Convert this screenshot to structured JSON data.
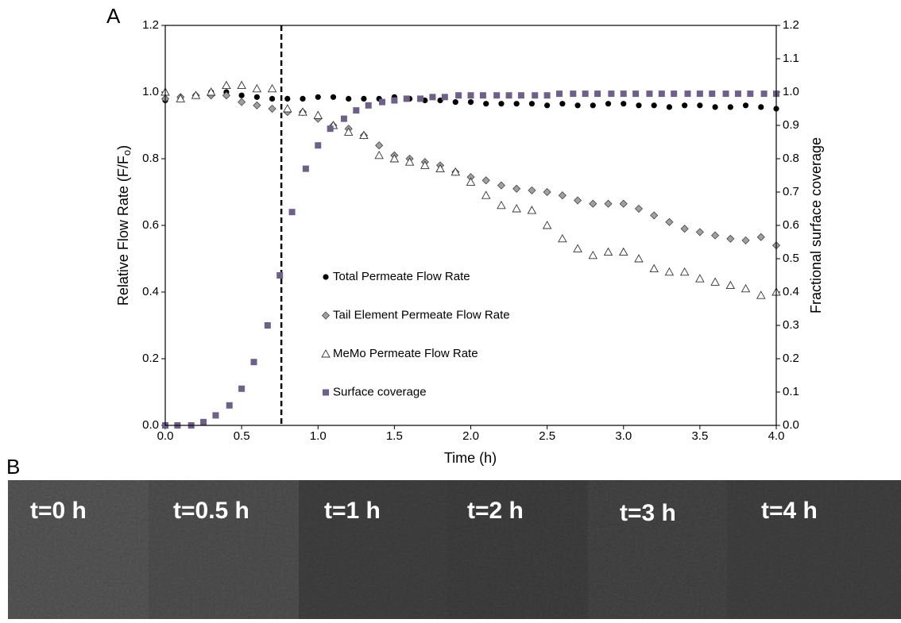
{
  "panel_labels": [
    "A",
    "B"
  ],
  "images": {
    "labels": [
      "t=0 h",
      "t=0.5 h",
      "t=1 h",
      "t=2 h",
      "t=3 h",
      "t=4 h"
    ]
  },
  "chart_data": {
    "type": "scatter",
    "xlabel": "Time (h)",
    "ylabel": "Relative Flow Rate (F/F",
    "ylabel_sub": "o",
    "ylabel_end": ")",
    "y2label": "Fractional surface coverage",
    "xlim": [
      0,
      4
    ],
    "ylim": [
      0,
      1.2
    ],
    "y2lim": [
      0,
      1.2
    ],
    "xticks": [
      {
        "value": 0,
        "label": "0.0"
      },
      0.5,
      {
        "value": 1,
        "label": "1.0"
      },
      1.5,
      {
        "value": 2,
        "label": "2.0"
      },
      2.5,
      {
        "value": 3,
        "label": "3.0"
      },
      3.5,
      {
        "value": 4,
        "label": "4.0"
      }
    ],
    "yticks": [
      {
        "value": 0,
        "label": "0.0"
      },
      0.2,
      0.4,
      0.6,
      0.8,
      {
        "value": 1,
        "label": "1.0"
      },
      1.2
    ],
    "y2ticks": [
      {
        "value": 0,
        "label": "0.0"
      },
      0.1,
      0.2,
      0.3,
      0.4,
      0.5,
      0.6,
      0.7,
      0.8,
      0.9,
      {
        "value": 1,
        "label": "1.0"
      },
      1.1,
      1.2
    ],
    "reference_line_x": 0.76,
    "series": [
      {
        "name": "Total Permeate Flow Rate",
        "marker": "circle",
        "color": "#000000",
        "x": [
          0,
          0.1,
          0.2,
          0.3,
          0.4,
          0.5,
          0.6,
          0.7,
          0.8,
          0.9,
          1.0,
          1.1,
          1.2,
          1.3,
          1.4,
          1.5,
          1.6,
          1.7,
          1.8,
          1.9,
          2.0,
          2.1,
          2.2,
          2.3,
          2.4,
          2.5,
          2.6,
          2.7,
          2.8,
          2.9,
          3.0,
          3.1,
          3.2,
          3.3,
          3.4,
          3.5,
          3.6,
          3.7,
          3.8,
          3.9,
          4.0
        ],
        "values": [
          0.975,
          0.98,
          0.99,
          1.0,
          1.0,
          0.99,
          0.985,
          0.98,
          0.98,
          0.98,
          0.985,
          0.985,
          0.98,
          0.98,
          0.98,
          0.985,
          0.98,
          0.975,
          0.975,
          0.97,
          0.97,
          0.965,
          0.965,
          0.965,
          0.965,
          0.96,
          0.965,
          0.96,
          0.96,
          0.965,
          0.965,
          0.96,
          0.96,
          0.955,
          0.96,
          0.96,
          0.955,
          0.955,
          0.96,
          0.955,
          0.95
        ]
      },
      {
        "name": "Tail Element Permeate Flow Rate",
        "marker": "diamond",
        "color": "#a0a0a0",
        "x": [
          0,
          0.1,
          0.2,
          0.3,
          0.4,
          0.5,
          0.6,
          0.7,
          0.8,
          0.9,
          1.0,
          1.1,
          1.2,
          1.3,
          1.4,
          1.5,
          1.6,
          1.7,
          1.8,
          1.9,
          2.0,
          2.1,
          2.2,
          2.3,
          2.4,
          2.5,
          2.6,
          2.7,
          2.8,
          2.9,
          3.0,
          3.1,
          3.2,
          3.3,
          3.4,
          3.5,
          3.6,
          3.7,
          3.8,
          3.9,
          4.0
        ],
        "values": [
          0.98,
          0.985,
          0.99,
          0.99,
          0.99,
          0.97,
          0.96,
          0.95,
          0.94,
          0.94,
          0.92,
          0.9,
          0.89,
          0.87,
          0.84,
          0.81,
          0.8,
          0.79,
          0.78,
          0.76,
          0.745,
          0.735,
          0.72,
          0.71,
          0.705,
          0.7,
          0.69,
          0.675,
          0.665,
          0.665,
          0.665,
          0.65,
          0.63,
          0.61,
          0.59,
          0.58,
          0.57,
          0.56,
          0.555,
          0.565,
          0.54
        ]
      },
      {
        "name": "MeMo Permeate Flow Rate",
        "marker": "triangle",
        "color": "#ffffff",
        "x": [
          0,
          0.1,
          0.2,
          0.3,
          0.4,
          0.5,
          0.6,
          0.7,
          0.8,
          0.9,
          1.0,
          1.1,
          1.2,
          1.3,
          1.4,
          1.5,
          1.6,
          1.7,
          1.8,
          1.9,
          2.0,
          2.1,
          2.2,
          2.3,
          2.4,
          2.5,
          2.6,
          2.7,
          2.8,
          2.9,
          3.0,
          3.1,
          3.2,
          3.3,
          3.4,
          3.5,
          3.6,
          3.7,
          3.8,
          3.9,
          4.0
        ],
        "values": [
          1.0,
          0.98,
          0.99,
          1.0,
          1.02,
          1.02,
          1.01,
          1.01,
          0.95,
          0.94,
          0.93,
          0.9,
          0.88,
          0.87,
          0.81,
          0.8,
          0.79,
          0.78,
          0.77,
          0.76,
          0.73,
          0.69,
          0.66,
          0.65,
          0.645,
          0.6,
          0.56,
          0.53,
          0.51,
          0.52,
          0.52,
          0.5,
          0.47,
          0.46,
          0.46,
          0.44,
          0.43,
          0.42,
          0.41,
          0.39,
          0.4
        ]
      },
      {
        "name": "Surface coverage",
        "marker": "square",
        "color": "#6e6088",
        "axis": "y2",
        "x": [
          0,
          0.08,
          0.17,
          0.25,
          0.33,
          0.42,
          0.5,
          0.58,
          0.67,
          0.75,
          0.83,
          0.92,
          1.0,
          1.08,
          1.17,
          1.25,
          1.33,
          1.42,
          1.5,
          1.58,
          1.67,
          1.75,
          1.83,
          1.92,
          2.0,
          2.08,
          2.17,
          2.25,
          2.33,
          2.42,
          2.5,
          2.58,
          2.67,
          2.75,
          2.83,
          2.92,
          3.0,
          3.08,
          3.17,
          3.25,
          3.33,
          3.42,
          3.5,
          3.58,
          3.67,
          3.75,
          3.83,
          3.92,
          4.0
        ],
        "values": [
          0,
          0,
          0,
          0.01,
          0.03,
          0.06,
          0.11,
          0.19,
          0.3,
          0.45,
          0.64,
          0.77,
          0.84,
          0.89,
          0.92,
          0.945,
          0.96,
          0.97,
          0.975,
          0.98,
          0.98,
          0.985,
          0.985,
          0.99,
          0.99,
          0.99,
          0.99,
          0.99,
          0.99,
          0.99,
          0.99,
          0.995,
          0.995,
          0.995,
          0.995,
          0.995,
          0.995,
          0.995,
          0.995,
          0.995,
          0.995,
          0.995,
          0.995,
          0.995,
          0.995,
          0.995,
          0.995,
          0.995,
          0.995
        ]
      }
    ]
  }
}
